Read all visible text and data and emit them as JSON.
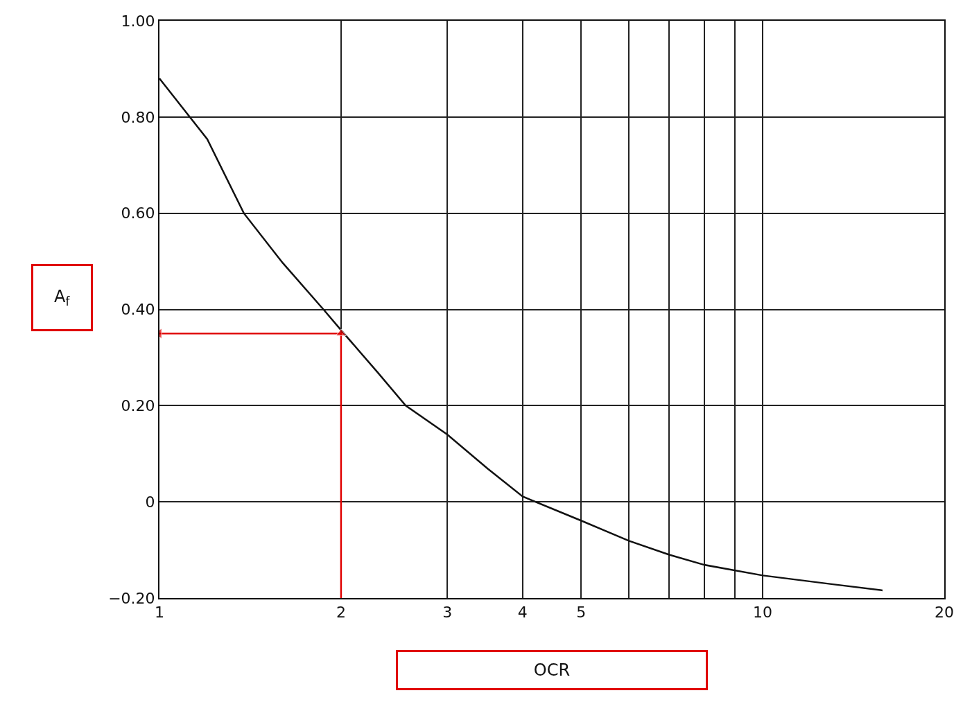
{
  "chart_data": {
    "type": "line",
    "xlabel": "OCR",
    "ylabel": "A$_{f}$",
    "series": [
      {
        "color": "#111111",
        "x": [
          1,
          1.2,
          1.38,
          1.6,
          1.87,
          2,
          2.3,
          2.56,
          3,
          3.5,
          4,
          5,
          6,
          7,
          8,
          10,
          13,
          15.8
        ],
        "values": [
          0.88,
          0.754,
          0.6,
          0.497,
          0.4,
          0.357,
          0.269,
          0.2,
          0.14,
          0.069,
          0.011,
          -0.039,
          -0.081,
          -0.11,
          -0.131,
          -0.153,
          -0.171,
          -0.184
        ],
        "marker": "none"
      },
      {
        "color": "#e00000",
        "x": [
          2,
          2,
          1
        ],
        "values": [
          -0.2,
          0.35,
          0.35
        ],
        "marker": "triangle"
      }
    ],
    "log": "x",
    "xlim": [
      1,
      20
    ],
    "ylim": [
      -0.2,
      1.0
    ],
    "xticks": [
      1,
      2,
      3,
      4,
      5,
      {
        "value": 6,
        "label": null
      },
      {
        "value": 7,
        "label": null
      },
      {
        "value": 8,
        "label": null
      },
      {
        "value": 9,
        "label": null
      },
      10,
      20
    ],
    "yticks": [
      {
        "value": -0.2,
        "label": "−0.20"
      },
      0,
      {
        "value": 0.2,
        "label": "0.20"
      },
      {
        "value": 0.4,
        "label": "0.40"
      },
      {
        "value": 0.6,
        "label": "0.60"
      },
      {
        "value": 0.8,
        "label": "0.80"
      },
      {
        "value": 1.0,
        "label": "1.00"
      }
    ],
    "grid": true,
    "legend": false,
    "line_style": "solid"
  }
}
